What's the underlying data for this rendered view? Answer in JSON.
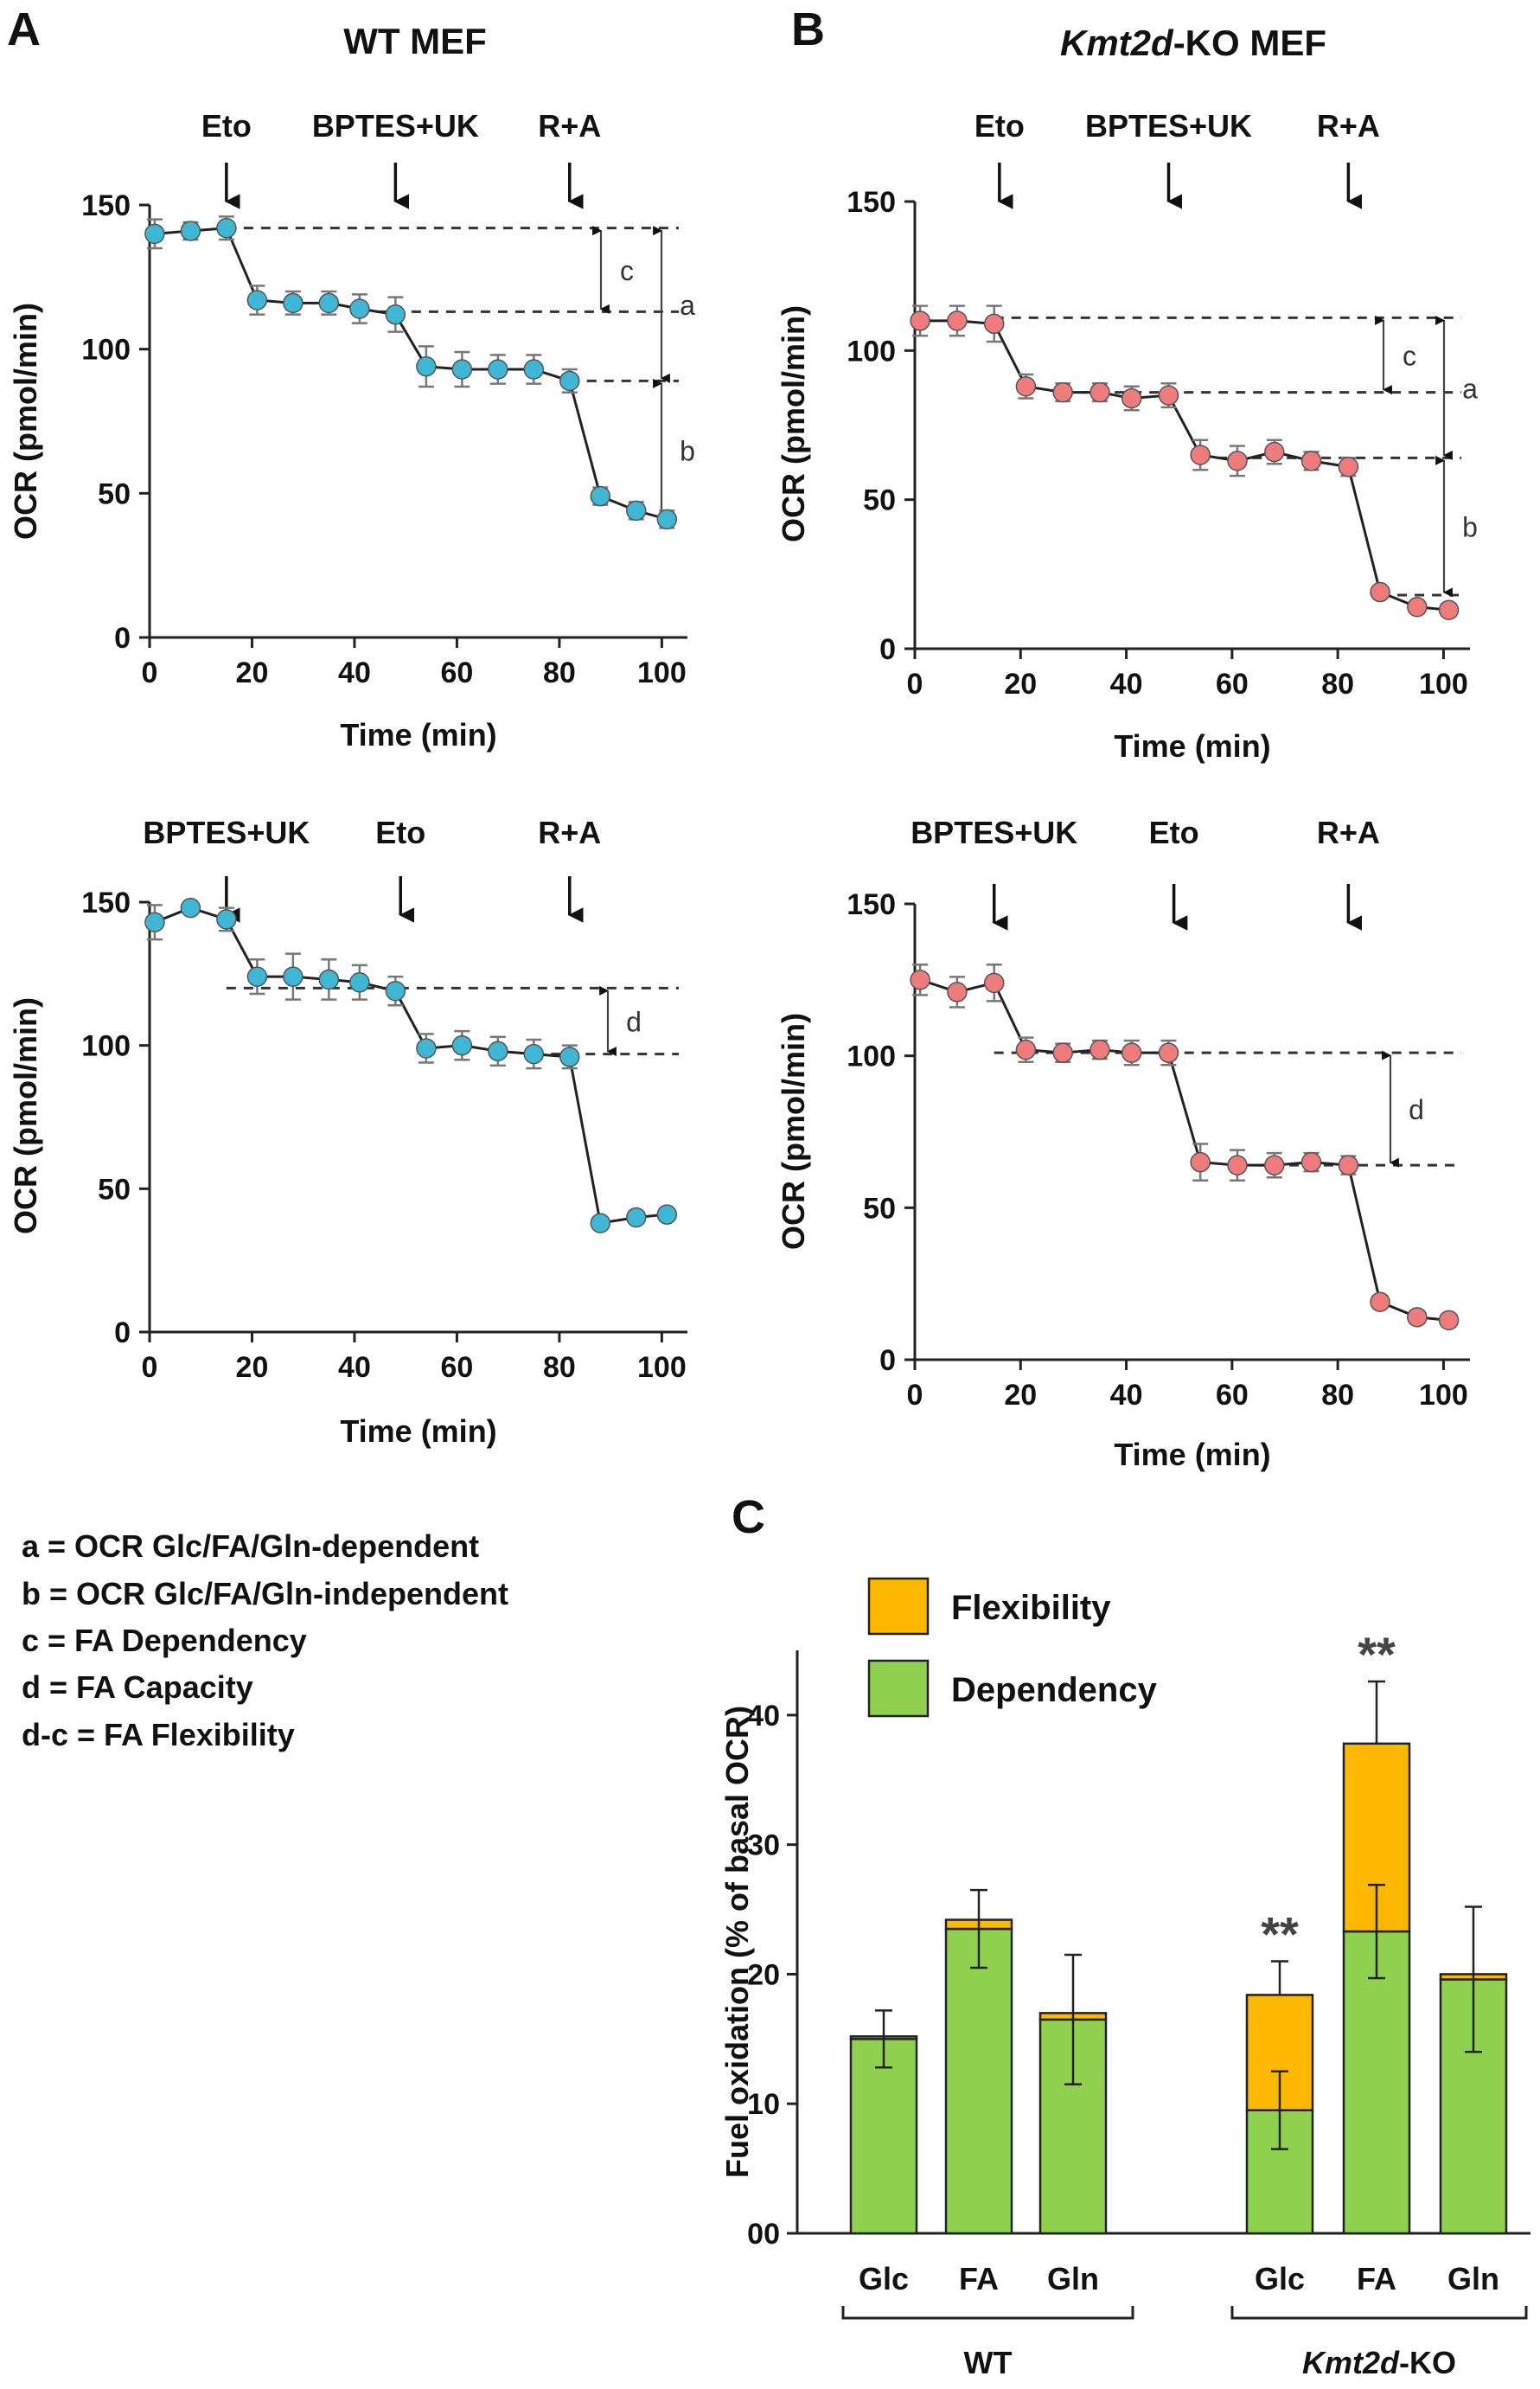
{
  "panels": [
    {
      "label": "A"
    },
    {
      "label": "B"
    },
    {
      "label": "C"
    }
  ],
  "definitions": [
    "a = OCR Glc/FA/Gln-dependent",
    "b = OCR Glc/FA/Gln-independent",
    "c = FA Dependency",
    "d = FA Capacity",
    "d-c = FA Flexibility"
  ],
  "colors": {
    "wt_marker": "#3fb6d3",
    "ko_marker": "#ee7c7c",
    "flexibility": "#ffb800",
    "dependency": "#8fd14f"
  },
  "chart_data": [
    {
      "id": "wt_top",
      "type": "line",
      "panel": "A",
      "title": "WT MEF",
      "xlabel": "Time (min)",
      "ylabel": "OCR (pmol/min)",
      "xlim": [
        0,
        105
      ],
      "ylim": [
        0,
        150
      ],
      "xticks": [
        "0",
        "20",
        "40",
        "60",
        "80",
        "100"
      ],
      "yticks": [
        "0",
        "50",
        "100",
        "150"
      ],
      "x": [
        1,
        8,
        15,
        21,
        28,
        35,
        41,
        48,
        54,
        61,
        68,
        75,
        82,
        88,
        95,
        101
      ],
      "y": [
        140,
        141,
        142,
        117,
        116,
        116,
        114,
        112,
        94,
        93,
        93,
        93,
        89,
        49,
        44,
        41
      ],
      "err": [
        5,
        3,
        4,
        5,
        4,
        4,
        5,
        6,
        7,
        6,
        5,
        5,
        4,
        3,
        3,
        3
      ],
      "injections": [
        {
          "label": "Eto",
          "x": 15
        },
        {
          "label": "BPTES+UK",
          "x": 48
        },
        {
          "label": "R+A",
          "x": 82
        }
      ],
      "brackets": [
        {
          "label": "c",
          "from": 142,
          "to": 113
        },
        {
          "label": "a",
          "from": 142,
          "to": 89
        },
        {
          "label": "b",
          "from": 89,
          "to": 41
        }
      ]
    },
    {
      "id": "ko_top",
      "type": "line",
      "panel": "B",
      "title": "Kmt2d-KO MEF",
      "xlabel": "Time (min)",
      "ylabel": "OCR (pmol/min)",
      "xlim": [
        0,
        105
      ],
      "ylim": [
        0,
        150
      ],
      "xticks": [
        "0",
        "20",
        "40",
        "60",
        "80",
        "100"
      ],
      "yticks": [
        "0",
        "50",
        "100",
        "150"
      ],
      "x": [
        1,
        8,
        15,
        21,
        28,
        35,
        41,
        48,
        54,
        61,
        68,
        75,
        82,
        88,
        95,
        101
      ],
      "y": [
        110,
        110,
        109,
        88,
        86,
        86,
        84,
        85,
        65,
        63,
        66,
        63,
        61,
        19,
        14,
        13
      ],
      "err": [
        5,
        5,
        6,
        4,
        3,
        3,
        4,
        4,
        5,
        5,
        4,
        3,
        3,
        2,
        2,
        2
      ],
      "injections": [
        {
          "label": "Eto",
          "x": 16
        },
        {
          "label": "BPTES+UK",
          "x": 48
        },
        {
          "label": "R+A",
          "x": 82
        }
      ],
      "brackets": [
        {
          "label": "c",
          "from": 111,
          "to": 86
        },
        {
          "label": "a",
          "from": 111,
          "to": 64
        },
        {
          "label": "b",
          "from": 64,
          "to": 18
        }
      ]
    },
    {
      "id": "wt_bottom",
      "type": "line",
      "panel": "A",
      "xlabel": "Time (min)",
      "ylabel": "OCR (pmol/min)",
      "xlim": [
        0,
        105
      ],
      "ylim": [
        0,
        150
      ],
      "xticks": [
        "0",
        "20",
        "40",
        "60",
        "80",
        "100"
      ],
      "yticks": [
        "0",
        "50",
        "100",
        "150"
      ],
      "x": [
        1,
        8,
        15,
        21,
        28,
        35,
        41,
        48,
        54,
        61,
        68,
        75,
        82,
        88,
        95,
        101
      ],
      "y": [
        143,
        148,
        144,
        124,
        124,
        123,
        122,
        119,
        99,
        100,
        98,
        97,
        96,
        38,
        40,
        41
      ],
      "err": [
        6,
        2,
        4,
        6,
        8,
        7,
        6,
        5,
        5,
        5,
        5,
        5,
        4,
        2,
        2,
        2
      ],
      "injections": [
        {
          "label": "BPTES+UK",
          "x": 15
        },
        {
          "label": "Eto",
          "x": 49
        },
        {
          "label": "R+A",
          "x": 82
        }
      ],
      "brackets": [
        {
          "label": "d",
          "from": 120,
          "to": 97
        }
      ]
    },
    {
      "id": "ko_bottom",
      "type": "line",
      "panel": "B",
      "xlabel": "Time (min)",
      "ylabel": "OCR (pmol/min)",
      "xlim": [
        0,
        105
      ],
      "ylim": [
        0,
        150
      ],
      "xticks": [
        "0",
        "20",
        "40",
        "60",
        "80",
        "100"
      ],
      "yticks": [
        "0",
        "50",
        "100",
        "150"
      ],
      "x": [
        1,
        8,
        15,
        21,
        28,
        35,
        41,
        48,
        54,
        61,
        68,
        75,
        82,
        88,
        95,
        101
      ],
      "y": [
        125,
        121,
        124,
        102,
        101,
        102,
        101,
        101,
        65,
        64,
        64,
        65,
        64,
        19,
        14,
        13
      ],
      "err": [
        5,
        5,
        6,
        4,
        3,
        3,
        4,
        4,
        6,
        5,
        4,
        3,
        3,
        2,
        2,
        2
      ],
      "injections": [
        {
          "label": "BPTES+UK",
          "x": 15
        },
        {
          "label": "Eto",
          "x": 49
        },
        {
          "label": "R+A",
          "x": 82
        }
      ],
      "brackets": [
        {
          "label": "d",
          "from": 101,
          "to": 64
        }
      ]
    },
    {
      "id": "fuel_bar",
      "type": "bar",
      "panel": "C",
      "ylabel": "Fuel oxidation (% of basal OCR)",
      "ylim": [
        0,
        45
      ],
      "yticks": [
        "00",
        "10",
        "20",
        "30",
        "40"
      ],
      "categories": [
        "Glc",
        "FA",
        "Gln",
        "Glc",
        "FA",
        "Gln"
      ],
      "groups": [
        {
          "label": "WT",
          "prefix": "",
          "suffix": ""
        },
        {
          "label": "KO",
          "prefix": "Kmt2d",
          "suffix": "-KO"
        }
      ],
      "series": [
        {
          "name": "Dependency",
          "values": [
            15,
            23.5,
            16.5,
            9.5,
            23.3,
            19.6
          ]
        },
        {
          "name": "Flexibility",
          "values": [
            0.2,
            0.7,
            0.5,
            8.9,
            14.5,
            0.4
          ]
        }
      ],
      "errors": [
        2.2,
        3,
        5,
        3,
        3.6,
        5.6
      ],
      "error_direction": [
        "up",
        "down",
        "down",
        "down",
        "down",
        "down"
      ],
      "top_errors": [
        0,
        0,
        0,
        2.6,
        4.8,
        0
      ],
      "significance": [
        "",
        "",
        "",
        "**",
        "**",
        ""
      ],
      "legend": [
        "Flexibility",
        "Dependency"
      ]
    }
  ]
}
